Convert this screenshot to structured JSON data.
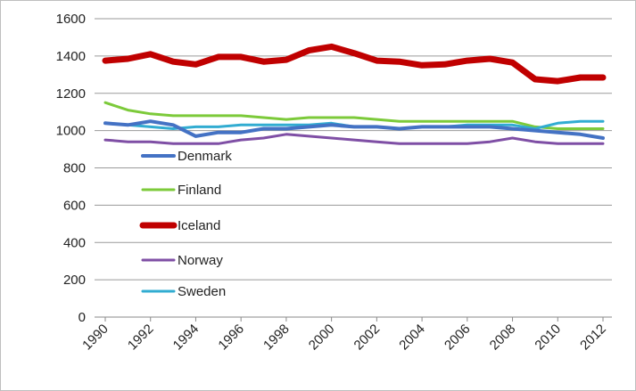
{
  "chart_data": {
    "type": "line",
    "title": "",
    "xlabel": "",
    "ylabel": "",
    "x": [
      1990,
      1991,
      1992,
      1993,
      1994,
      1995,
      1996,
      1997,
      1998,
      1999,
      2000,
      2001,
      2002,
      2003,
      2004,
      2005,
      2006,
      2007,
      2008,
      2009,
      2010,
      2011,
      2012
    ],
    "x_tick_labels": [
      "1990",
      "1992",
      "1994",
      "1996",
      "1998",
      "2000",
      "2002",
      "2004",
      "2006",
      "2008",
      "2010",
      "2012"
    ],
    "y_tick_labels": [
      "0",
      "200",
      "400",
      "600",
      "800",
      "1000",
      "1200",
      "1400",
      "1600"
    ],
    "ylim": [
      0,
      1600
    ],
    "grid": "horizontal",
    "legend_position": "inside-left",
    "series": [
      {
        "name": "Denmark",
        "color": "#4472c4",
        "width": 4,
        "values": [
          1040,
          1030,
          1050,
          1030,
          970,
          990,
          990,
          1010,
          1010,
          1020,
          1030,
          1020,
          1020,
          1010,
          1020,
          1020,
          1020,
          1020,
          1010,
          1000,
          990,
          980,
          960
        ]
      },
      {
        "name": "Finland",
        "color": "#7cca3a",
        "width": 3,
        "values": [
          1150,
          1110,
          1090,
          1080,
          1080,
          1080,
          1080,
          1070,
          1060,
          1070,
          1070,
          1070,
          1060,
          1050,
          1050,
          1050,
          1050,
          1050,
          1050,
          1020,
          1010,
          1010,
          1010
        ]
      },
      {
        "name": "Iceland",
        "color": "#c00000",
        "width": 7,
        "values": [
          1375,
          1385,
          1410,
          1370,
          1355,
          1395,
          1395,
          1370,
          1380,
          1430,
          1450,
          1415,
          1375,
          1370,
          1350,
          1355,
          1375,
          1385,
          1365,
          1275,
          1265,
          1285,
          1285
        ]
      },
      {
        "name": "Norway",
        "color": "#7f4fa5",
        "width": 3,
        "values": [
          950,
          940,
          940,
          930,
          930,
          930,
          950,
          960,
          980,
          970,
          960,
          950,
          940,
          930,
          930,
          930,
          930,
          940,
          960,
          940,
          930,
          930,
          930
        ]
      },
      {
        "name": "Sweden",
        "color": "#31acd1",
        "width": 3,
        "values": [
          1040,
          1030,
          1020,
          1010,
          1020,
          1020,
          1030,
          1030,
          1030,
          1030,
          1040,
          1020,
          1020,
          1010,
          1020,
          1020,
          1030,
          1030,
          1030,
          1010,
          1040,
          1050,
          1050
        ]
      }
    ]
  }
}
